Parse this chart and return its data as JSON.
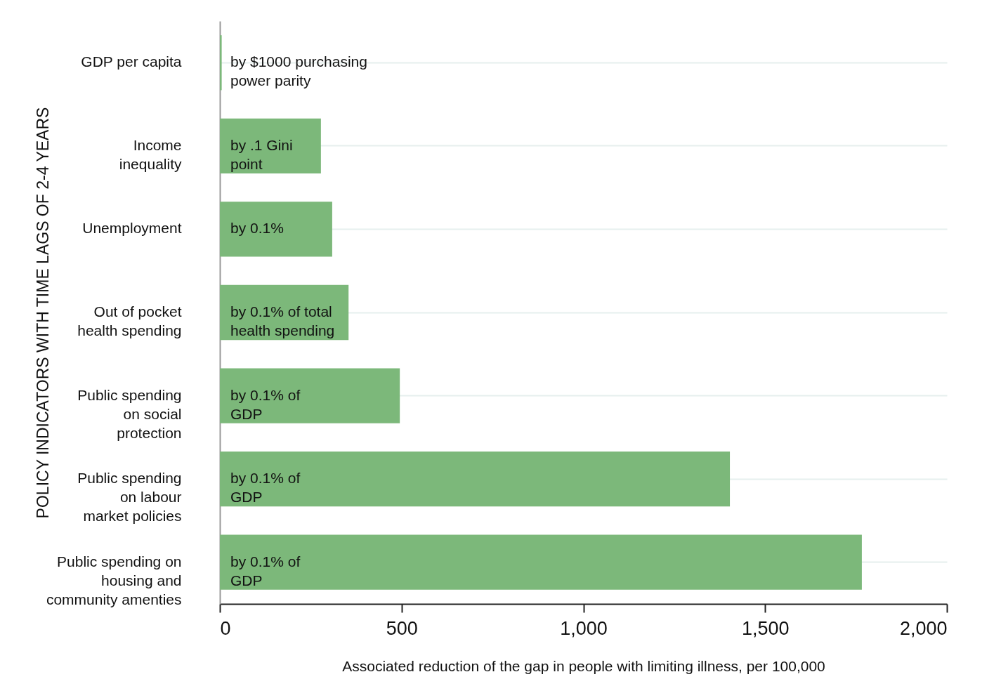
{
  "chart_data": {
    "type": "bar",
    "orientation": "horizontal",
    "xlabel": "Associated reduction of the gap in people with limiting illness, per 100,000",
    "ylabel": "POLICY INDICATORS WITH TIME LAGS OF 2-4 YEARS",
    "categories": [
      "GDP per capita",
      "Income\ninequality",
      "Unemployment",
      "Out of pocket\nhealth spending",
      "Public spending\non social\nprotection",
      "Public spending\non labour\nmarket policies",
      "Public spending on\nhousing and\ncommunity amenties"
    ],
    "values": [
      5,
      278,
      309,
      354,
      495,
      1403,
      1766
    ],
    "color": "#7cb87a",
    "xlim": [
      0,
      2000
    ],
    "xticks": [
      0,
      500,
      {
        "value": 1000,
        "label": "1,000"
      },
      {
        "value": 1500,
        "label": "1,500"
      },
      {
        "value": 2000,
        "label": "2,000"
      }
    ],
    "grid": "y",
    "annotations": [
      "by $1000 purchasing\npower parity",
      "by .1 Gini\npoint",
      "by 0.1%",
      "by 0.1% of total\nhealth spending",
      "by 0.1% of\nGDP",
      "by 0.1% of\nGDP",
      "by 0.1% of\nGDP"
    ]
  }
}
